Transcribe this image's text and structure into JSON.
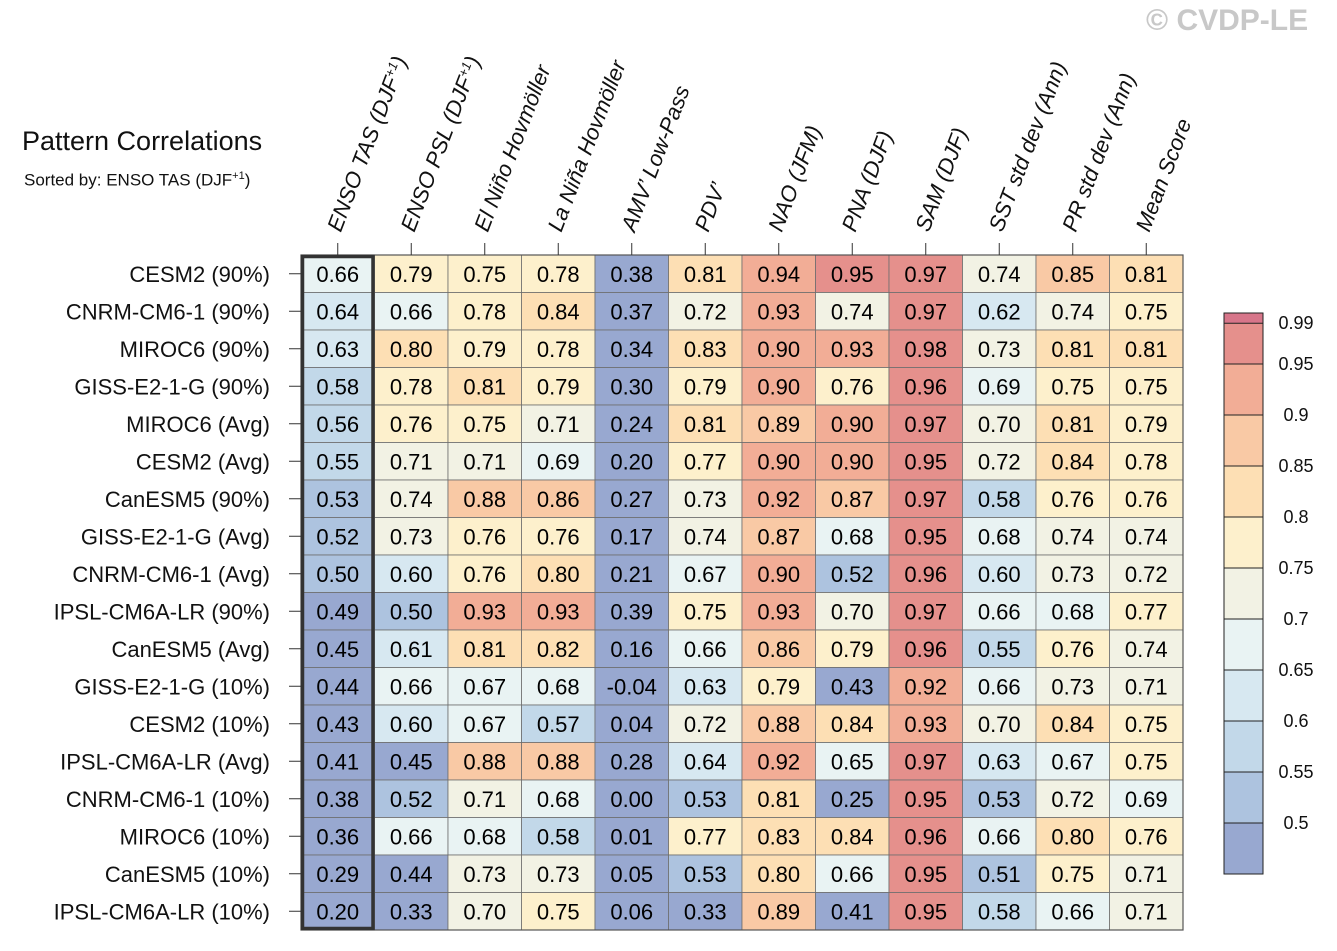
{
  "title": "Pattern Correlations",
  "subtitle_prefix": "Sorted by: ENSO TAS (DJF",
  "subtitle_sup": "+1",
  "subtitle_suffix": ")",
  "watermark": "© CVDP-LE",
  "chart_data": {
    "type": "heatmap",
    "columns": [
      {
        "label": "ENSO TAS (DJF",
        "sup": "+1",
        "suffix": ")"
      },
      {
        "label": "ENSO PSL (DJF",
        "sup": "+1",
        "suffix": ")"
      },
      {
        "label": "El Niño Hovmöller",
        "sup": "",
        "suffix": ""
      },
      {
        "label": "La Niña Hovmöller",
        "sup": "",
        "suffix": ""
      },
      {
        "label": "AMV’ Low-Pass",
        "sup": "",
        "suffix": ""
      },
      {
        "label": "PDV’",
        "sup": "",
        "suffix": ""
      },
      {
        "label": "NAO (JFM)",
        "sup": "",
        "suffix": ""
      },
      {
        "label": "PNA (DJF)",
        "sup": "",
        "suffix": ""
      },
      {
        "label": "SAM (DJF)",
        "sup": "",
        "suffix": ""
      },
      {
        "label": "SST std dev (Ann)",
        "sup": "",
        "suffix": ""
      },
      {
        "label": "PR std dev (Ann)",
        "sup": "",
        "suffix": ""
      },
      {
        "label": "Mean Score",
        "sup": "",
        "suffix": ""
      }
    ],
    "rows": [
      "CESM2 (90%)",
      "CNRM-CM6-1 (90%)",
      "MIROC6 (90%)",
      "GISS-E2-1-G (90%)",
      "MIROC6 (Avg)",
      "CESM2 (Avg)",
      "CanESM5 (90%)",
      "GISS-E2-1-G (Avg)",
      "CNRM-CM6-1 (Avg)",
      "IPSL-CM6A-LR (90%)",
      "CanESM5 (Avg)",
      "GISS-E2-1-G (10%)",
      "CESM2 (10%)",
      "IPSL-CM6A-LR (Avg)",
      "CNRM-CM6-1 (10%)",
      "MIROC6 (10%)",
      "CanESM5 (10%)",
      "IPSL-CM6A-LR (10%)"
    ],
    "values": [
      [
        "0.66",
        "0.79",
        "0.75",
        "0.78",
        "0.38",
        "0.81",
        "0.94",
        "0.95",
        "0.97",
        "0.74",
        "0.85",
        "0.81"
      ],
      [
        "0.64",
        "0.66",
        "0.78",
        "0.84",
        "0.37",
        "0.72",
        "0.93",
        "0.74",
        "0.97",
        "0.62",
        "0.74",
        "0.75"
      ],
      [
        "0.63",
        "0.80",
        "0.79",
        "0.78",
        "0.34",
        "0.83",
        "0.90",
        "0.93",
        "0.98",
        "0.73",
        "0.81",
        "0.81"
      ],
      [
        "0.58",
        "0.78",
        "0.81",
        "0.79",
        "0.30",
        "0.79",
        "0.90",
        "0.76",
        "0.96",
        "0.69",
        "0.75",
        "0.75"
      ],
      [
        "0.56",
        "0.76",
        "0.75",
        "0.71",
        "0.24",
        "0.81",
        "0.89",
        "0.90",
        "0.97",
        "0.70",
        "0.81",
        "0.79"
      ],
      [
        "0.55",
        "0.71",
        "0.71",
        "0.69",
        "0.20",
        "0.77",
        "0.90",
        "0.90",
        "0.95",
        "0.72",
        "0.84",
        "0.78"
      ],
      [
        "0.53",
        "0.74",
        "0.88",
        "0.86",
        "0.27",
        "0.73",
        "0.92",
        "0.87",
        "0.97",
        "0.58",
        "0.76",
        "0.76"
      ],
      [
        "0.52",
        "0.73",
        "0.76",
        "0.76",
        "0.17",
        "0.74",
        "0.87",
        "0.68",
        "0.95",
        "0.68",
        "0.74",
        "0.74"
      ],
      [
        "0.50",
        "0.60",
        "0.76",
        "0.80",
        "0.21",
        "0.67",
        "0.90",
        "0.52",
        "0.96",
        "0.60",
        "0.73",
        "0.72"
      ],
      [
        "0.49",
        "0.50",
        "0.93",
        "0.93",
        "0.39",
        "0.75",
        "0.93",
        "0.70",
        "0.97",
        "0.66",
        "0.68",
        "0.77"
      ],
      [
        "0.45",
        "0.61",
        "0.81",
        "0.82",
        "0.16",
        "0.66",
        "0.86",
        "0.79",
        "0.96",
        "0.55",
        "0.76",
        "0.74"
      ],
      [
        "0.44",
        "0.66",
        "0.67",
        "0.68",
        "-0.04",
        "0.63",
        "0.79",
        "0.43",
        "0.92",
        "0.66",
        "0.73",
        "0.71"
      ],
      [
        "0.43",
        "0.60",
        "0.67",
        "0.57",
        "0.04",
        "0.72",
        "0.88",
        "0.84",
        "0.93",
        "0.70",
        "0.84",
        "0.75"
      ],
      [
        "0.41",
        "0.45",
        "0.88",
        "0.88",
        "0.28",
        "0.64",
        "0.92",
        "0.65",
        "0.97",
        "0.63",
        "0.67",
        "0.75"
      ],
      [
        "0.38",
        "0.52",
        "0.71",
        "0.68",
        "0.00",
        "0.53",
        "0.81",
        "0.25",
        "0.95",
        "0.53",
        "0.72",
        "0.69"
      ],
      [
        "0.36",
        "0.66",
        "0.68",
        "0.58",
        "0.01",
        "0.77",
        "0.83",
        "0.84",
        "0.96",
        "0.66",
        "0.80",
        "0.76"
      ],
      [
        "0.29",
        "0.44",
        "0.73",
        "0.73",
        "0.05",
        "0.53",
        "0.80",
        "0.66",
        "0.95",
        "0.51",
        "0.75",
        "0.71"
      ],
      [
        "0.20",
        "0.33",
        "0.70",
        "0.75",
        "0.06",
        "0.33",
        "0.89",
        "0.41",
        "0.95",
        "0.58",
        "0.66",
        "0.71"
      ]
    ],
    "highlighted_column": 0,
    "colorbar": {
      "levels": [
        0.5,
        0.55,
        0.6,
        0.65,
        0.7,
        0.75,
        0.8,
        0.85,
        0.9,
        0.95,
        0.99
      ],
      "tick_labels": [
        "0.5",
        "0.55",
        "0.6",
        "0.65",
        "0.7",
        "0.75",
        "0.8",
        "0.85",
        "0.9",
        "0.95",
        "0.99"
      ],
      "colors": [
        "#98a8d0",
        "#adc3df",
        "#c2d8e9",
        "#d7e8f1",
        "#e9f3f3",
        "#f2f2e4",
        "#fdf0cc",
        "#fddfb4",
        "#f9c9a5",
        "#f2ad96",
        "#e5908c",
        "#d7768a"
      ],
      "placement": "right"
    }
  }
}
